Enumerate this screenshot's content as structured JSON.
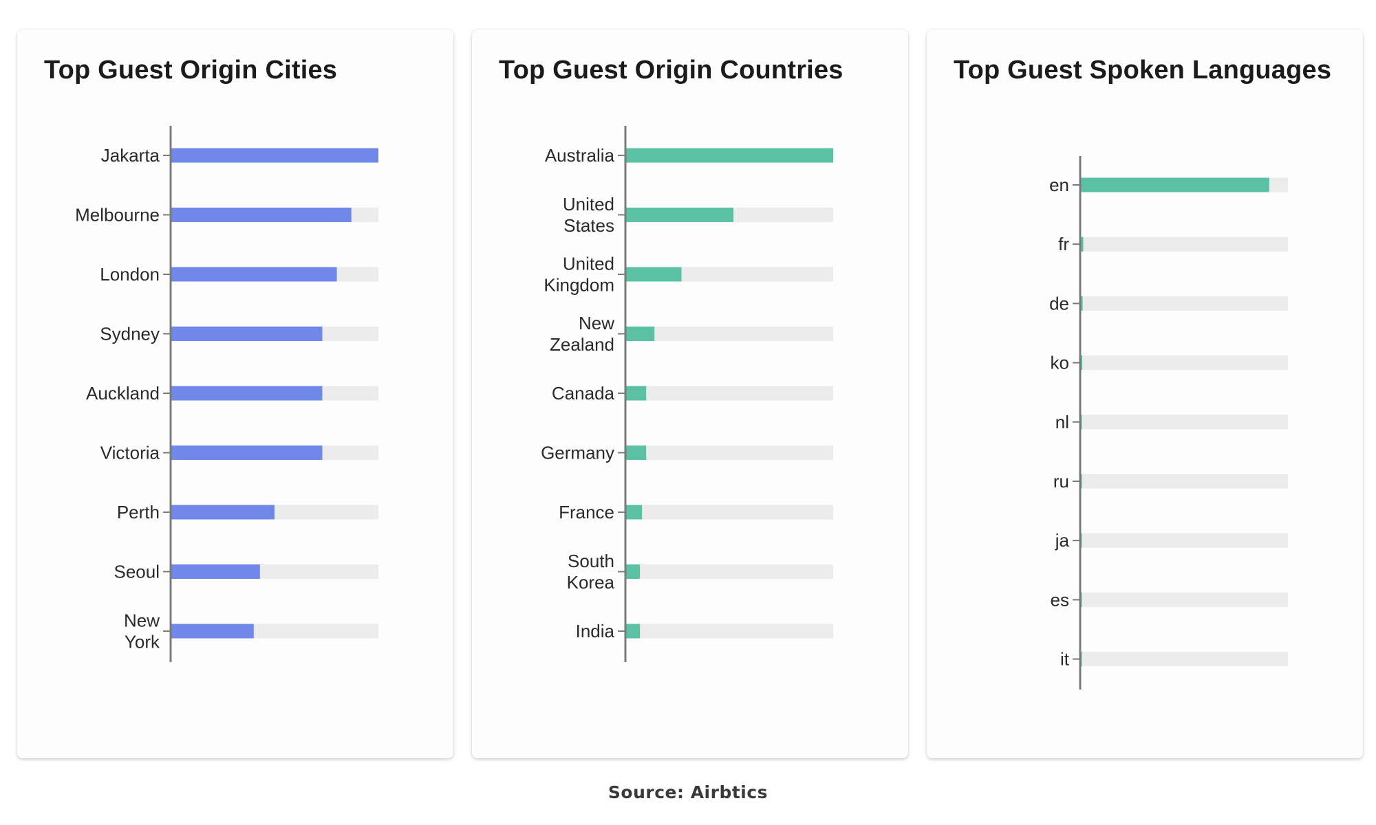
{
  "source_text": "Source: Airbtics",
  "chart_data": [
    {
      "type": "bar",
      "orientation": "horizontal",
      "title": "Top Guest Origin Cities",
      "categories": [
        "Jakarta",
        "Melbourne",
        "London",
        "Sydney",
        "Auckland",
        "Victoria",
        "Perth",
        "Seoul",
        "New York"
      ],
      "values": [
        100,
        87,
        80,
        73,
        73,
        73,
        50,
        43,
        40
      ],
      "xlim": [
        0,
        100
      ],
      "bar_color": "#7089e8",
      "track_color": "#ececec",
      "grid": false,
      "legend": "none"
    },
    {
      "type": "bar",
      "orientation": "horizontal",
      "title": "Top Guest Origin Countries",
      "categories": [
        "Australia",
        "United States",
        "United Kingdom",
        "New Zealand",
        "Canada",
        "Germany",
        "France",
        "South Korea",
        "India"
      ],
      "values": [
        100,
        52,
        27,
        14,
        10,
        10,
        8,
        7,
        7
      ],
      "xlim": [
        0,
        100
      ],
      "bar_color": "#5bc1a5",
      "track_color": "#ececec",
      "grid": false,
      "legend": "none"
    },
    {
      "type": "bar",
      "orientation": "horizontal",
      "title": "Top Guest Spoken Languages",
      "categories": [
        "en",
        "fr",
        "de",
        "ko",
        "nl",
        "ru",
        "ja",
        "es",
        "it"
      ],
      "values": [
        91,
        1.5,
        1.2,
        1,
        0.5,
        0.4,
        0.3,
        0.3,
        0.3
      ],
      "xlim": [
        0,
        100
      ],
      "bar_color": "#5bc1a5",
      "track_color": "#ececec",
      "grid": false,
      "legend": "none"
    }
  ]
}
